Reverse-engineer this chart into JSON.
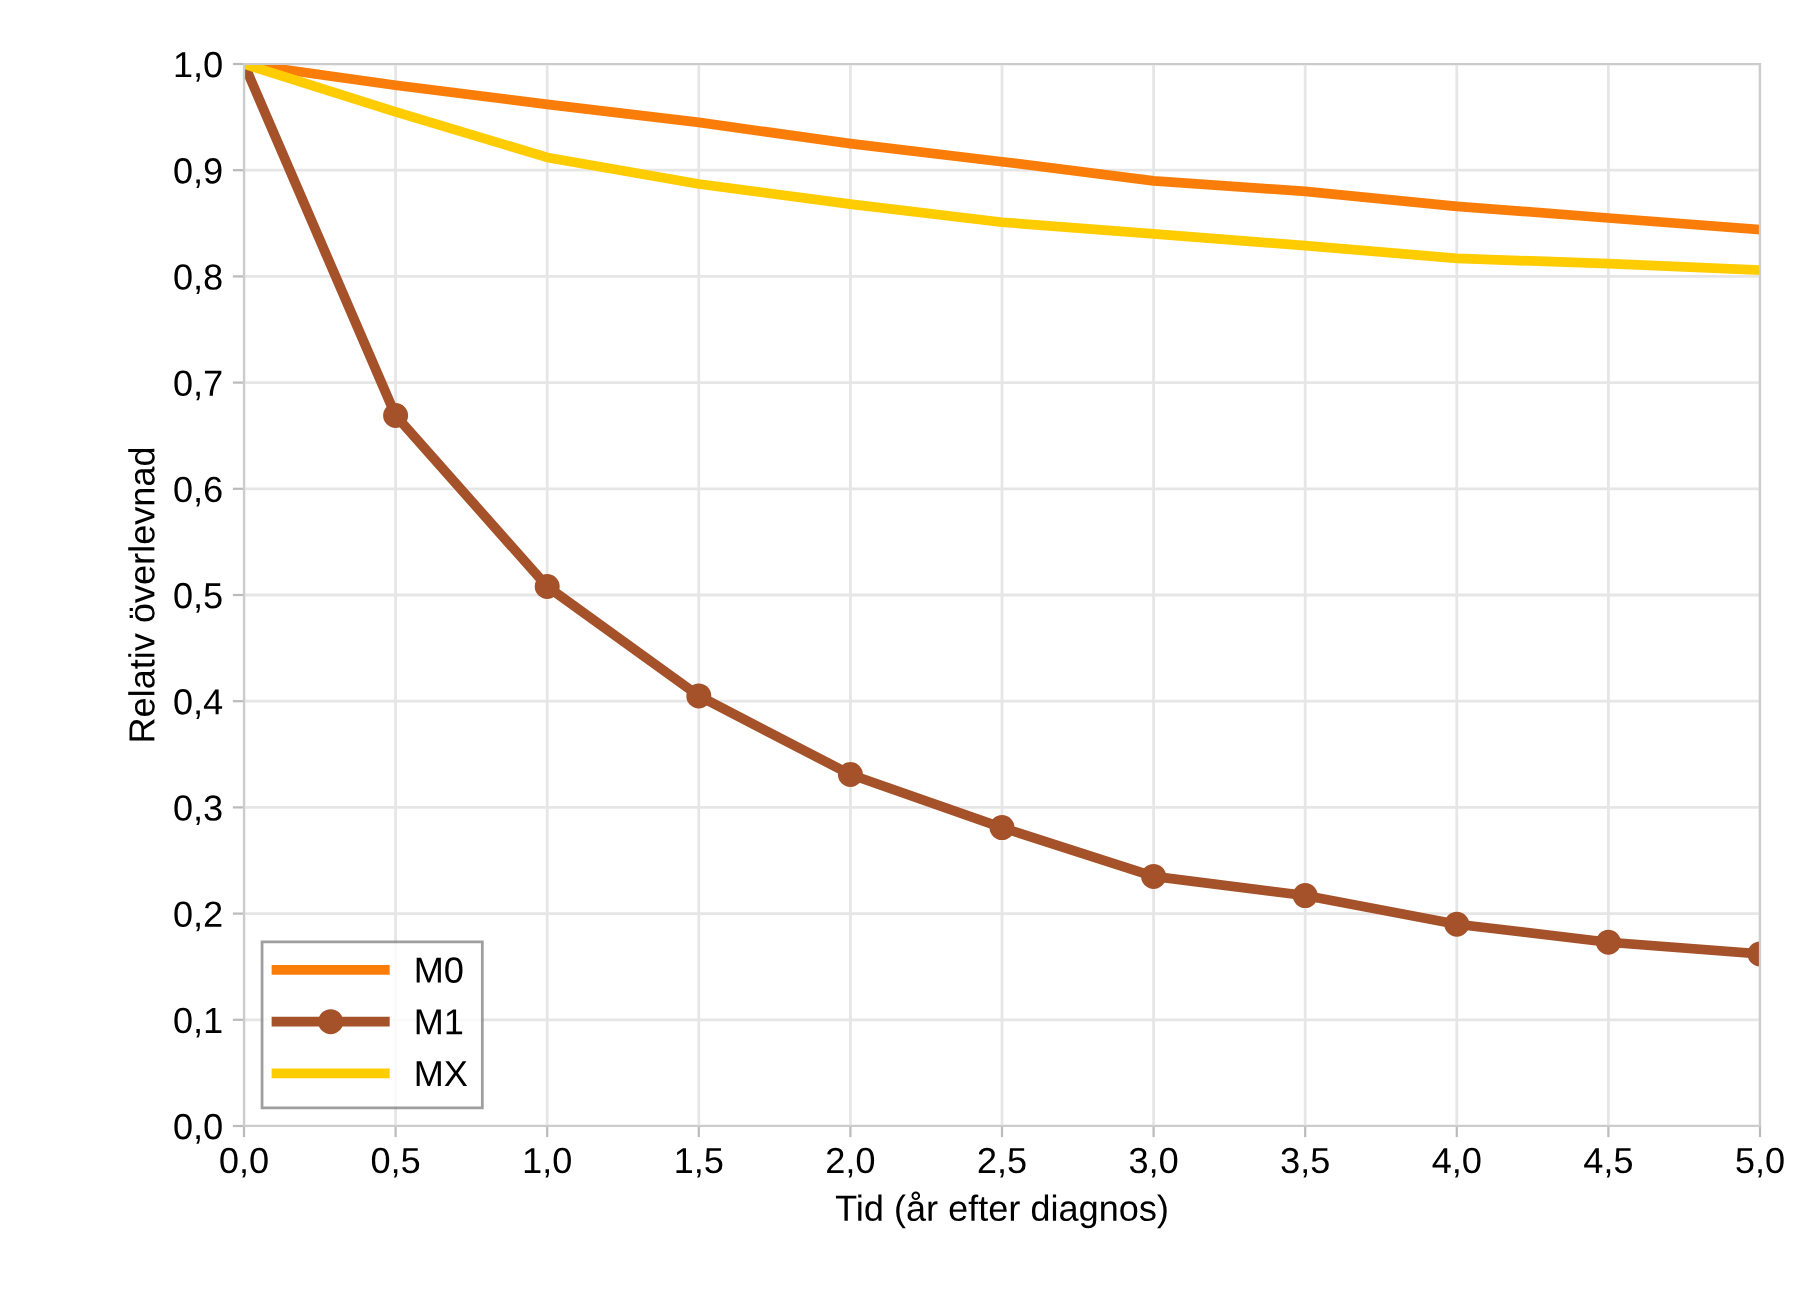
{
  "chart_data": {
    "type": "line",
    "xlabel": "Tid (år efter diagnos)",
    "ylabel": "Relativ överlevnad",
    "x": [
      0,
      0.5,
      1,
      1.5,
      2,
      2.5,
      3,
      3.5,
      4,
      4.5,
      5
    ],
    "series": [
      {
        "name": "M0",
        "color": "#fa7d0a",
        "marker": "none",
        "values": [
          1.0,
          0.98,
          0.962,
          0.945,
          0.925,
          0.908,
          0.89,
          0.88,
          0.866,
          0.855,
          0.844
        ]
      },
      {
        "name": "M1",
        "color": "#a5522a",
        "marker": "circle",
        "values": [
          1.0,
          0.669,
          0.508,
          0.405,
          0.331,
          0.281,
          0.235,
          0.217,
          0.19,
          0.173,
          0.162
        ]
      },
      {
        "name": "MX",
        "color": "#ffcc00",
        "marker": "none",
        "values": [
          1.0,
          0.955,
          0.912,
          0.887,
          0.868,
          0.851,
          0.84,
          0.829,
          0.817,
          0.812,
          0.806
        ]
      }
    ],
    "xlim": [
      0,
      5
    ],
    "ylim": [
      0,
      1
    ],
    "xticks": [
      {
        "value": 0,
        "label": "0,0"
      },
      {
        "value": 0.5,
        "label": "0,5"
      },
      {
        "value": 1,
        "label": "1,0"
      },
      {
        "value": 1.5,
        "label": "1,5"
      },
      {
        "value": 2,
        "label": "2,0"
      },
      {
        "value": 2.5,
        "label": "2,5"
      },
      {
        "value": 3,
        "label": "3,0"
      },
      {
        "value": 3.5,
        "label": "3,5"
      },
      {
        "value": 4,
        "label": "4,0"
      },
      {
        "value": 4.5,
        "label": "4,5"
      },
      {
        "value": 5,
        "label": "5,0"
      }
    ],
    "yticks": [
      {
        "value": 0,
        "label": "0,0"
      },
      {
        "value": 0.1,
        "label": "0,1"
      },
      {
        "value": 0.2,
        "label": "0,2"
      },
      {
        "value": 0.3,
        "label": "0,3"
      },
      {
        "value": 0.4,
        "label": "0,4"
      },
      {
        "value": 0.5,
        "label": "0,5"
      },
      {
        "value": 0.6,
        "label": "0,6"
      },
      {
        "value": 0.7,
        "label": "0,7"
      },
      {
        "value": 0.8,
        "label": "0,8"
      },
      {
        "value": 0.9,
        "label": "0,9"
      },
      {
        "value": 1,
        "label": "1,0"
      }
    ],
    "grid": true,
    "legend": "bottom left",
    "line_style": "solid"
  }
}
